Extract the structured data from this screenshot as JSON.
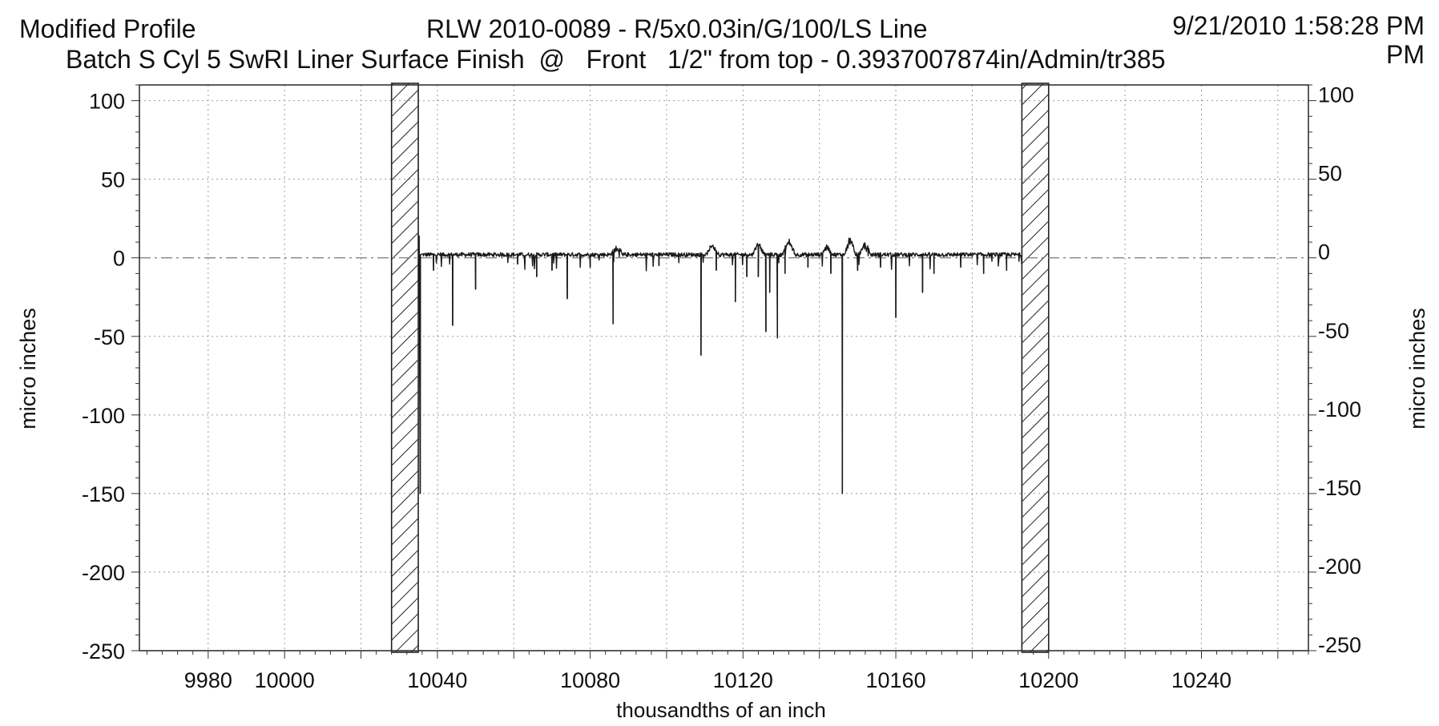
{
  "header": {
    "top_left": "Modified Profile",
    "top_center": "RLW 2010-0089 - R/5x0.03in/G/100/LS Line",
    "top_right": "9/21/2010 1:58:28 PM",
    "second_line": "Batch S Cyl 5 SwRI Liner Surface Finish  @   Front   1/2\" from top - 0.3937007874in/Admin/tr385",
    "second_line_tail": "PM"
  },
  "chart_data": {
    "type": "line",
    "xlabel": "thousandths of an inch",
    "ylabel": "micro inches",
    "ylabel_right": "micro inches",
    "xlim": [
      9962,
      10268
    ],
    "ylim": [
      -250,
      110
    ],
    "xticks": [
      9980,
      10000,
      10040,
      10080,
      10120,
      10160,
      10200,
      10240
    ],
    "yticks": [
      100,
      50,
      0,
      -50,
      -100,
      -150,
      -200,
      -250
    ],
    "grid": true,
    "excluded_regions": [
      [
        10028,
        10035
      ],
      [
        10193,
        10200
      ]
    ],
    "series": [
      {
        "baseline": 2,
        "x_range": [
          10035,
          10193
        ],
        "spikes": [
          {
            "x": 10035.2,
            "y": 14
          },
          {
            "x": 10035.5,
            "y": -150
          },
          {
            "x": 10039,
            "y": -8
          },
          {
            "x": 10044,
            "y": -43
          },
          {
            "x": 10050,
            "y": -20
          },
          {
            "x": 10061,
            "y": -4
          },
          {
            "x": 10066,
            "y": -12
          },
          {
            "x": 10070,
            "y": -8
          },
          {
            "x": 10074,
            "y": -26
          },
          {
            "x": 10080,
            "y": -6
          },
          {
            "x": 10086,
            "y": -42
          },
          {
            "x": 10098,
            "y": -5
          },
          {
            "x": 10109,
            "y": -62
          },
          {
            "x": 10113,
            "y": -8
          },
          {
            "x": 10118,
            "y": -28
          },
          {
            "x": 10121,
            "y": -12
          },
          {
            "x": 10124,
            "y": -12
          },
          {
            "x": 10126,
            "y": -47
          },
          {
            "x": 10127,
            "y": -22
          },
          {
            "x": 10129,
            "y": -51
          },
          {
            "x": 10131,
            "y": -10
          },
          {
            "x": 10137,
            "y": -6
          },
          {
            "x": 10143,
            "y": -10
          },
          {
            "x": 10146,
            "y": -150
          },
          {
            "x": 10150,
            "y": -8
          },
          {
            "x": 10156,
            "y": -6
          },
          {
            "x": 10160,
            "y": -38
          },
          {
            "x": 10167,
            "y": -22
          },
          {
            "x": 10170,
            "y": -10
          },
          {
            "x": 10177,
            "y": -6
          },
          {
            "x": 10183,
            "y": -10
          },
          {
            "x": 10189,
            "y": -8
          }
        ],
        "bumps": [
          {
            "x": 10087,
            "y": 8
          },
          {
            "x": 10112,
            "y": 10
          },
          {
            "x": 10124,
            "y": 12
          },
          {
            "x": 10132,
            "y": 14
          },
          {
            "x": 10142,
            "y": 8
          },
          {
            "x": 10148,
            "y": 14
          },
          {
            "x": 10152,
            "y": 10
          }
        ]
      }
    ]
  }
}
